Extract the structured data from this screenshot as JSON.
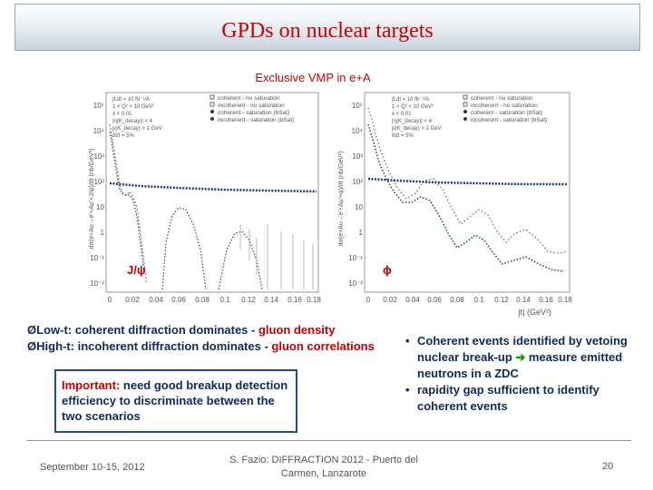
{
  "slide": {
    "title": "GPDs on nuclear targets",
    "subtitle": "Exclusive VMP in e+A",
    "colors": {
      "title": "#cc0000",
      "text": "#0d2a5a",
      "accent": "#c00000",
      "arrow": "#00a000",
      "box_border": "#1f4e8f"
    }
  },
  "plots": {
    "left": {
      "ylabel": "dσ(e+Au→e'+Au'+J/ψ)/dt (nb/GeV²)",
      "label": "J/ψ",
      "legend": {
        "info": [
          "∫Ldt = 10 fb⁻¹/A",
          "1 < Q² < 10 GeV²",
          "x < 0.01",
          "|η(K_decay)| < 4",
          "p(K_decay) > 1 GeV",
          "δt/t = 5%"
        ],
        "entries": [
          "coherent - no saturation",
          "incoherent - no saturation",
          "coherent - saturation (bSat)",
          "incoherent - saturation (bSat)"
        ]
      },
      "yticks": [
        "10⁵",
        "10⁴",
        "10³",
        "10²",
        "10",
        "1",
        "10⁻¹",
        "10⁻²"
      ],
      "xticks": [
        "0",
        "0.02",
        "0.04",
        "0.06",
        "0.08",
        "0.1",
        "0.12",
        "0.14",
        "0.16",
        "0.18"
      ]
    },
    "right": {
      "ylabel": "dσ(e+Au→e'+Au'+φ)/dt (nb/GeV²)",
      "xlabel": "|t| (GeV²)",
      "label": "ϕ",
      "legend": {
        "info": [
          "∫Ldt = 10 fb⁻¹/A",
          "1 < Q² < 10 GeV²",
          "x < 0.01",
          "|η(K_decay)| < 4",
          "p(K_decay) > 1 GeV",
          "δt/t = 5%"
        ],
        "entries": [
          "coherent - no saturation",
          "incoherent - no saturation",
          "coherent - saturation (bSat)",
          "incoherent - saturation (bSat)"
        ]
      },
      "yticks": [
        "10⁵",
        "10⁴",
        "10³",
        "10²",
        "10",
        "1",
        "10⁻¹",
        "10⁻²"
      ],
      "xticks": [
        "0",
        "0.02",
        "0.04",
        "0.06",
        "0.08",
        "0.1",
        "0.12",
        "0.14",
        "0.16",
        "0.18"
      ]
    }
  },
  "bullets": {
    "b1_prefix": "Low-t: coherent diffraction dominates - ",
    "b1_red": "gluon density",
    "b2_prefix": "High-t: incoherent diffraction dominates - ",
    "b2_red": "gluon correlations"
  },
  "box": {
    "important": "Important:",
    "text": " need good breakup detection efficiency to discriminate between the two scenarios"
  },
  "right_text": {
    "item1_a": "Coherent events identified by vetoing nuclear break-up ",
    "arrow": "➔",
    "item1_b": " measure emitted neutrons in a ZDC",
    "item2": " rapidity gap sufficient to identify coherent events"
  },
  "footer": {
    "date": "September 10-15, 2012",
    "author_line1": "S. Fazio: DIFFRACTION 2012 - Puerto del",
    "author_line2": "Carmen, Lanzarote",
    "page": "20"
  }
}
